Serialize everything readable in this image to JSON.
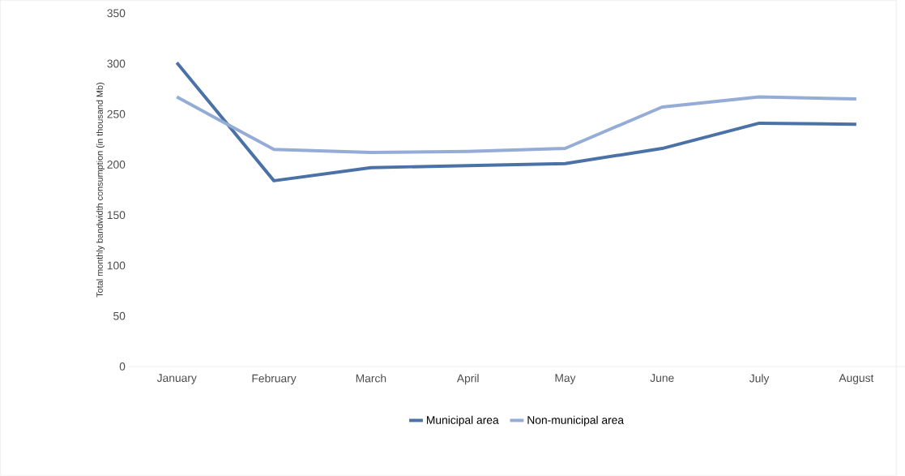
{
  "chart_data": {
    "type": "line",
    "ylabel": "Total monthly bandwidth consumption (in thousand Mb)",
    "categories": [
      "January",
      "February",
      "March",
      "April",
      "May",
      "June",
      "July",
      "August"
    ],
    "series": [
      {
        "name": "Municipal area",
        "color": "#4a72a6",
        "values": [
          301,
          184,
          197,
          199,
          201,
          216,
          241,
          240
        ]
      },
      {
        "name": "Non-municipal area",
        "color": "#94acd6",
        "values": [
          267,
          215,
          212,
          213,
          216,
          257,
          267,
          265
        ]
      }
    ],
    "ylim": [
      0,
      350
    ],
    "yticks": [
      0,
      50,
      100,
      150,
      200,
      250,
      300,
      350
    ],
    "grid": false,
    "legend": "bottom",
    "marker": "none",
    "line_style": "solid"
  }
}
